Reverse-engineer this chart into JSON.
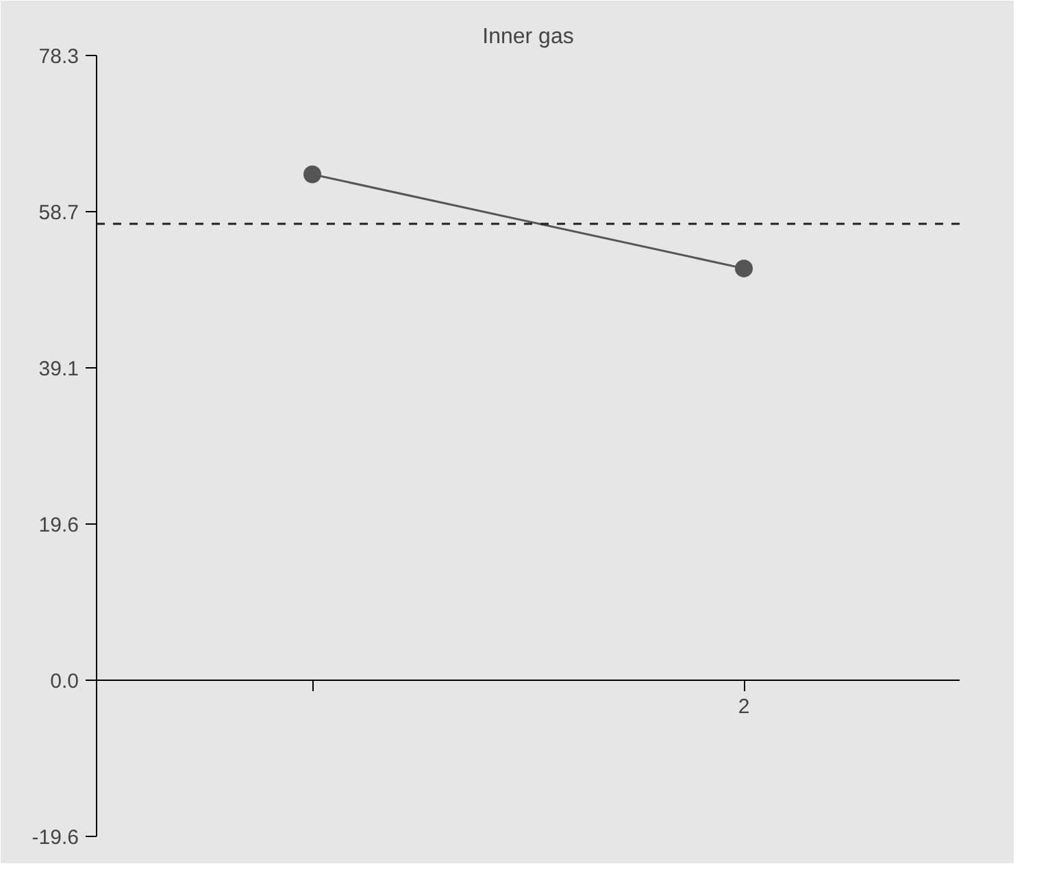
{
  "chart_data": {
    "type": "line",
    "title": "Inner gas",
    "categories": [
      null,
      "2"
    ],
    "series": [
      {
        "color": "#555555",
        "values": [
          63.4,
          51.6
        ]
      }
    ],
    "marker": "circle",
    "line_style": "solid",
    "ylim": [
      -19.6,
      78.3
    ],
    "yticks": [
      {
        "value": -19.6,
        "label": "-19.6"
      },
      {
        "value": 0,
        "label": "0.0"
      },
      {
        "value": 19.6,
        "label": "19.6"
      },
      {
        "value": 39.1,
        "label": "39.1"
      },
      {
        "value": 58.7,
        "label": "58.7"
      },
      {
        "value": 78.3,
        "label": "78.3"
      }
    ],
    "ref_lines": [
      {
        "axis": "y",
        "value": 57.2,
        "color": "#222222",
        "line_style": "dashed"
      }
    ]
  }
}
